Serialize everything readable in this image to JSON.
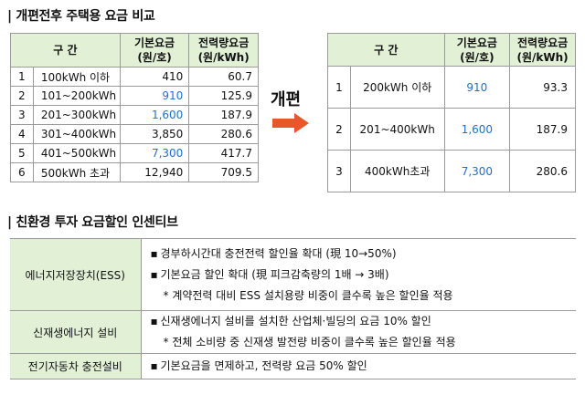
{
  "section1": {
    "title": "| 개편전후 주택용 요금 비교",
    "before_table": {
      "headers": {
        "range": "구 간",
        "base_line1": "기본요금",
        "base_line2": "(원/호)",
        "power_line1": "전력량요금",
        "power_line2": "(원/kWh)"
      },
      "rows": [
        {
          "no": "1",
          "range": "100kWh 이하",
          "base": "410",
          "power": "60.7",
          "base_highlight": false
        },
        {
          "no": "2",
          "range": "101~200kWh",
          "base": "910",
          "power": "125.9",
          "base_highlight": true
        },
        {
          "no": "3",
          "range": "201~300kWh",
          "base": "1,600",
          "power": "187.9",
          "base_highlight": true
        },
        {
          "no": "4",
          "range": "301~400kWh",
          "base": "3,850",
          "power": "280.6",
          "base_highlight": false
        },
        {
          "no": "5",
          "range": "401~500kWh",
          "base": "7,300",
          "power": "417.7",
          "base_highlight": true
        },
        {
          "no": "6",
          "range": "500kWh 초과",
          "base": "12,940",
          "power": "709.5",
          "base_highlight": false
        }
      ]
    },
    "arrow_label": "개편",
    "after_table": {
      "headers": {
        "range": "구 간",
        "base_line1": "기본요금",
        "base_line2": "(원/호)",
        "power_line1": "전력량요금",
        "power_line2": "(원/kWh)"
      },
      "rows": [
        {
          "no": "1",
          "range": "200kWh 이하",
          "base": "910",
          "power": "93.3"
        },
        {
          "no": "2",
          "range": "201~400kWh",
          "base": "1,600",
          "power": "187.9"
        },
        {
          "no": "3",
          "range": "400kWh초과",
          "base": "7,300",
          "power": "280.6"
        }
      ]
    }
  },
  "section2": {
    "title": "| 친환경 투자 요금할인 인센티브",
    "rows": [
      {
        "category": "에너지저장장치(ESS)",
        "lines": [
          {
            "bullet": "▪",
            "text": "경부하시간대 충전전력 할인율 확대 (現 10→50%)"
          },
          {
            "bullet": "▪",
            "text": "기본요금 할인 확대 (現 피크감축량의 1배 → 3배)"
          },
          {
            "bullet": "",
            "text": "* 계약전력 대비 ESS 설치용량 비중이 클수록 높은 할인율 적용"
          }
        ]
      },
      {
        "category": "신재생에너지 설비",
        "lines": [
          {
            "bullet": "▪",
            "text": "신재생에너지 설비를 설치한 산업체·빌딩의 요금 10% 할인"
          },
          {
            "bullet": "",
            "text": "* 전체 소비량 중 신재생 발전량 비중이 클수록 높은 할인율 적용"
          }
        ]
      },
      {
        "category": "전기자동차 충전설비",
        "lines": [
          {
            "bullet": "▪",
            "text": "기본요금을 면제하고, 전력량 요금 50% 할인"
          }
        ]
      }
    ]
  },
  "colors": {
    "header_bg": "#e2f0d6",
    "highlight": "#1f6fd0",
    "arrow": "#e8562a",
    "border": "#9a9a9a"
  }
}
